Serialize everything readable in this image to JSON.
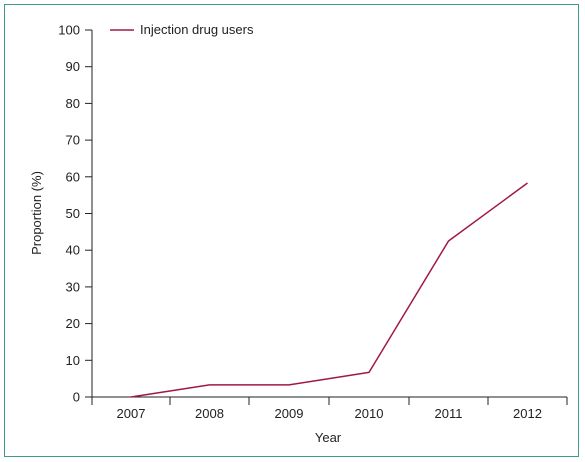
{
  "colors": {
    "series": "#a0184a",
    "axis": "#222222",
    "frame": "#3f9a8a"
  },
  "chart_data": {
    "type": "line",
    "title": "",
    "xlabel": "Year",
    "ylabel": "Proportion (%)",
    "categories": [
      "2007",
      "2008",
      "2009",
      "2010",
      "2011",
      "2012"
    ],
    "series": [
      {
        "name": "Injection drug users",
        "values": [
          0,
          3.3,
          3.3,
          6.7,
          42.5,
          58.3
        ]
      }
    ],
    "ylim": [
      0,
      100
    ],
    "yticks": [
      0,
      10,
      20,
      30,
      40,
      50,
      60,
      70,
      80,
      90,
      100
    ],
    "grid": false,
    "legend": "top-left"
  }
}
